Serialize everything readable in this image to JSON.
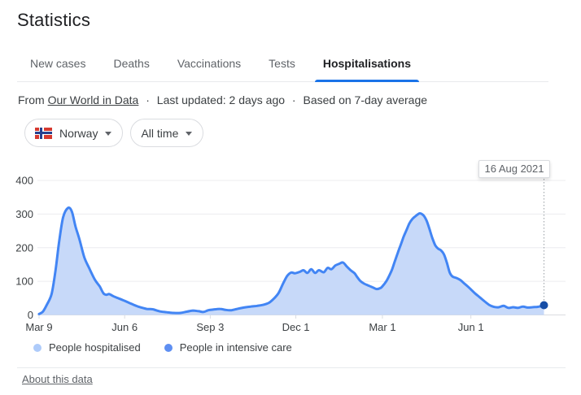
{
  "title": "Statistics",
  "tabs": [
    {
      "label": "New cases",
      "active": false
    },
    {
      "label": "Deaths",
      "active": false
    },
    {
      "label": "Vaccinations",
      "active": false
    },
    {
      "label": "Tests",
      "active": false
    },
    {
      "label": "Hospitalisations",
      "active": true
    }
  ],
  "source": {
    "prefix": "From",
    "link_text": "Our World in Data",
    "separator": "·",
    "updated_text": "Last updated: 2 days ago",
    "basis_text": "Based on 7-day average"
  },
  "filters": {
    "country": {
      "label": "Norway",
      "flag_icon": "norway-flag"
    },
    "time_range": {
      "label": "All time"
    }
  },
  "cursor_tooltip": {
    "date": "16 Aug 2021"
  },
  "legend": [
    {
      "label": "People hospitalised",
      "color": "#aecbfa"
    },
    {
      "label": "People in intensive care",
      "color": "#5e8ff2"
    }
  ],
  "footer": {
    "about_link": "About this data"
  },
  "colors": {
    "accent": "#1a73e8",
    "line": "#4285f4",
    "area_fill": "#c7d9f9",
    "cursor_dot": "#174ea6",
    "grid": "#ececef",
    "axis": "#dadce0",
    "axis_text": "#3c4043",
    "cursor_line": "#9aa0a6"
  },
  "chart_data": {
    "type": "area",
    "x_axis": {
      "tick_labels": [
        "Mar 9",
        "Jun 6",
        "Sep 3",
        "Dec 1",
        "Mar 1",
        "Jun 1"
      ],
      "tick_days": [
        0,
        89,
        178,
        267,
        357,
        449
      ],
      "range_days": [
        0,
        525
      ],
      "start_label": "Mar 9",
      "end_date": "16 Aug 2021"
    },
    "y_axis": {
      "ticks": [
        0,
        100,
        200,
        300,
        400
      ],
      "range": [
        0,
        400
      ]
    },
    "grid": true,
    "legend_position": "bottom",
    "cursor": {
      "date": "16 Aug 2021",
      "day": 525,
      "value": 29
    },
    "series": [
      {
        "name": "People hospitalised",
        "points_day_value": [
          [
            0,
            3
          ],
          [
            4,
            10
          ],
          [
            8,
            30
          ],
          [
            13,
            62
          ],
          [
            17,
            130
          ],
          [
            21,
            220
          ],
          [
            25,
            290
          ],
          [
            30,
            318
          ],
          [
            34,
            308
          ],
          [
            38,
            262
          ],
          [
            42,
            225
          ],
          [
            47,
            172
          ],
          [
            52,
            140
          ],
          [
            58,
            105
          ],
          [
            63,
            85
          ],
          [
            67,
            64
          ],
          [
            70,
            60
          ],
          [
            73,
            62
          ],
          [
            77,
            56
          ],
          [
            82,
            50
          ],
          [
            89,
            42
          ],
          [
            96,
            33
          ],
          [
            103,
            25
          ],
          [
            112,
            18
          ],
          [
            118,
            17
          ],
          [
            125,
            11
          ],
          [
            133,
            8
          ],
          [
            140,
            6
          ],
          [
            147,
            6
          ],
          [
            154,
            10
          ],
          [
            160,
            13
          ],
          [
            166,
            11
          ],
          [
            171,
            9
          ],
          [
            176,
            14
          ],
          [
            181,
            16
          ],
          [
            188,
            18
          ],
          [
            194,
            15
          ],
          [
            200,
            14
          ],
          [
            206,
            18
          ],
          [
            213,
            22
          ],
          [
            220,
            25
          ],
          [
            227,
            27
          ],
          [
            233,
            30
          ],
          [
            239,
            36
          ],
          [
            244,
            48
          ],
          [
            249,
            65
          ],
          [
            254,
            95
          ],
          [
            258,
            116
          ],
          [
            262,
            126
          ],
          [
            266,
            124
          ],
          [
            271,
            128
          ],
          [
            275,
            133
          ],
          [
            279,
            125
          ],
          [
            283,
            136
          ],
          [
            287,
            125
          ],
          [
            291,
            133
          ],
          [
            296,
            127
          ],
          [
            300,
            140
          ],
          [
            304,
            136
          ],
          [
            308,
            147
          ],
          [
            312,
            152
          ],
          [
            316,
            156
          ],
          [
            320,
            144
          ],
          [
            324,
            133
          ],
          [
            328,
            124
          ],
          [
            331,
            112
          ],
          [
            334,
            101
          ],
          [
            338,
            93
          ],
          [
            342,
            88
          ],
          [
            347,
            82
          ],
          [
            351,
            77
          ],
          [
            355,
            80
          ],
          [
            357,
            85
          ],
          [
            361,
            100
          ],
          [
            364,
            116
          ],
          [
            367,
            135
          ],
          [
            370,
            160
          ],
          [
            373,
            185
          ],
          [
            376,
            208
          ],
          [
            379,
            232
          ],
          [
            382,
            252
          ],
          [
            385,
            272
          ],
          [
            388,
            285
          ],
          [
            392,
            295
          ],
          [
            396,
            302
          ],
          [
            400,
            295
          ],
          [
            403,
            280
          ],
          [
            406,
            255
          ],
          [
            409,
            228
          ],
          [
            412,
            207
          ],
          [
            415,
            197
          ],
          [
            418,
            192
          ],
          [
            421,
            180
          ],
          [
            424,
            156
          ],
          [
            427,
            126
          ],
          [
            430,
            114
          ],
          [
            434,
            110
          ],
          [
            438,
            104
          ],
          [
            442,
            94
          ],
          [
            446,
            84
          ],
          [
            449,
            76
          ],
          [
            453,
            65
          ],
          [
            458,
            53
          ],
          [
            463,
            41
          ],
          [
            468,
            30
          ],
          [
            473,
            24
          ],
          [
            478,
            23
          ],
          [
            483,
            27
          ],
          [
            488,
            21
          ],
          [
            493,
            23
          ],
          [
            498,
            21
          ],
          [
            503,
            25
          ],
          [
            508,
            22
          ],
          [
            513,
            23
          ],
          [
            518,
            24
          ],
          [
            522,
            26
          ],
          [
            525,
            29
          ]
        ]
      }
    ]
  }
}
